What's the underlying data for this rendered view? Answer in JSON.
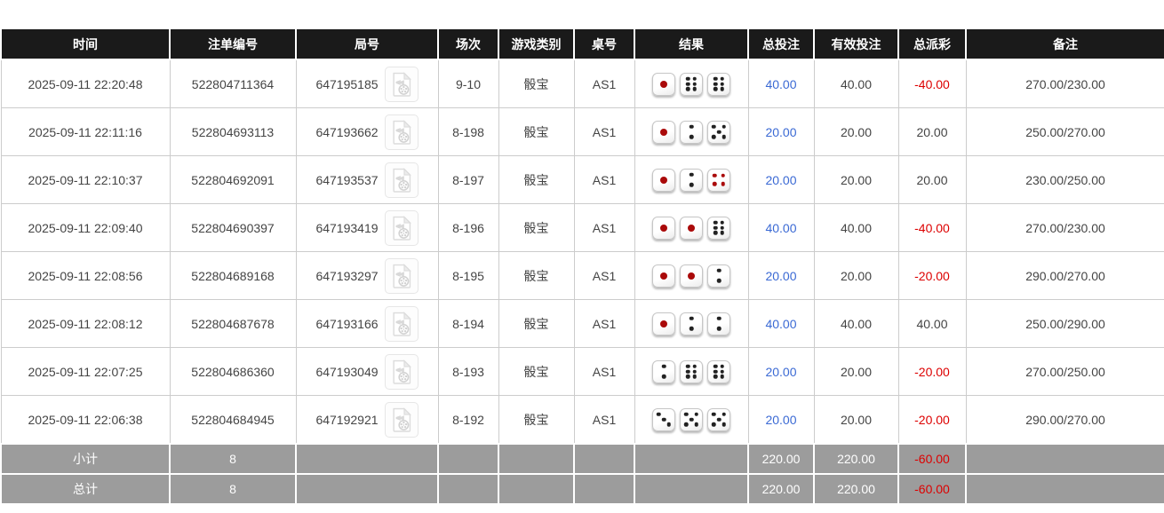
{
  "table": {
    "columns": [
      {
        "key": "time",
        "label": "时间"
      },
      {
        "key": "bet_id",
        "label": "注单编号"
      },
      {
        "key": "round_id",
        "label": "局号"
      },
      {
        "key": "session",
        "label": "场次"
      },
      {
        "key": "game_type",
        "label": "游戏类别"
      },
      {
        "key": "table_no",
        "label": "桌号"
      },
      {
        "key": "result",
        "label": "结果"
      },
      {
        "key": "total_bet",
        "label": "总投注"
      },
      {
        "key": "valid_bet",
        "label": "有效投注"
      },
      {
        "key": "payout",
        "label": "总派彩"
      },
      {
        "key": "remark",
        "label": "备注"
      }
    ],
    "rows": [
      {
        "time": "2025-09-11 22:20:48",
        "bet_id": "522804711364",
        "round_id": "647195185",
        "session": "9-10",
        "game_type": "骰宝",
        "table_no": "AS1",
        "dice": [
          1,
          6,
          6
        ],
        "total_bet": "40.00",
        "valid_bet": "40.00",
        "payout": "-40.00",
        "remark": "270.00/230.00"
      },
      {
        "time": "2025-09-11 22:11:16",
        "bet_id": "522804693113",
        "round_id": "647193662",
        "session": "8-198",
        "game_type": "骰宝",
        "table_no": "AS1",
        "dice": [
          1,
          2,
          5
        ],
        "total_bet": "20.00",
        "valid_bet": "20.00",
        "payout": "20.00",
        "remark": "250.00/270.00"
      },
      {
        "time": "2025-09-11 22:10:37",
        "bet_id": "522804692091",
        "round_id": "647193537",
        "session": "8-197",
        "game_type": "骰宝",
        "table_no": "AS1",
        "dice": [
          1,
          2,
          4
        ],
        "total_bet": "20.00",
        "valid_bet": "20.00",
        "payout": "20.00",
        "remark": "230.00/250.00"
      },
      {
        "time": "2025-09-11 22:09:40",
        "bet_id": "522804690397",
        "round_id": "647193419",
        "session": "8-196",
        "game_type": "骰宝",
        "table_no": "AS1",
        "dice": [
          1,
          1,
          6
        ],
        "total_bet": "40.00",
        "valid_bet": "40.00",
        "payout": "-40.00",
        "remark": "270.00/230.00"
      },
      {
        "time": "2025-09-11 22:08:56",
        "bet_id": "522804689168",
        "round_id": "647193297",
        "session": "8-195",
        "game_type": "骰宝",
        "table_no": "AS1",
        "dice": [
          1,
          1,
          2
        ],
        "total_bet": "20.00",
        "valid_bet": "20.00",
        "payout": "-20.00",
        "remark": "290.00/270.00"
      },
      {
        "time": "2025-09-11 22:08:12",
        "bet_id": "522804687678",
        "round_id": "647193166",
        "session": "8-194",
        "game_type": "骰宝",
        "table_no": "AS1",
        "dice": [
          1,
          2,
          2
        ],
        "total_bet": "40.00",
        "valid_bet": "40.00",
        "payout": "40.00",
        "remark": "250.00/290.00"
      },
      {
        "time": "2025-09-11 22:07:25",
        "bet_id": "522804686360",
        "round_id": "647193049",
        "session": "8-193",
        "game_type": "骰宝",
        "table_no": "AS1",
        "dice": [
          2,
          6,
          6
        ],
        "total_bet": "20.00",
        "valid_bet": "20.00",
        "payout": "-20.00",
        "remark": "270.00/250.00"
      },
      {
        "time": "2025-09-11 22:06:38",
        "bet_id": "522804684945",
        "round_id": "647192921",
        "session": "8-192",
        "game_type": "骰宝",
        "table_no": "AS1",
        "dice": [
          3,
          5,
          5
        ],
        "total_bet": "20.00",
        "valid_bet": "20.00",
        "payout": "-20.00",
        "remark": "290.00/270.00"
      }
    ],
    "summary_rows": [
      {
        "id": "subtotal",
        "label": "小计",
        "count": "8",
        "total_bet": "220.00",
        "valid_bet": "220.00",
        "payout": "-60.00"
      },
      {
        "id": "total",
        "label": "总计",
        "count": "8",
        "total_bet": "220.00",
        "valid_bet": "220.00",
        "payout": "-60.00"
      }
    ]
  },
  "icons": {
    "video_replay": "video-file-icon"
  },
  "colors": {
    "header_bg": "#1a1a1a",
    "summary_bg": "#9c9c9c",
    "bet_blue": "#3a69d4",
    "loss_red": "#dd0000",
    "grid_border": "#cccccc",
    "die_pip_black": "#222222",
    "die_pip_red": "#aa0a0a"
  }
}
